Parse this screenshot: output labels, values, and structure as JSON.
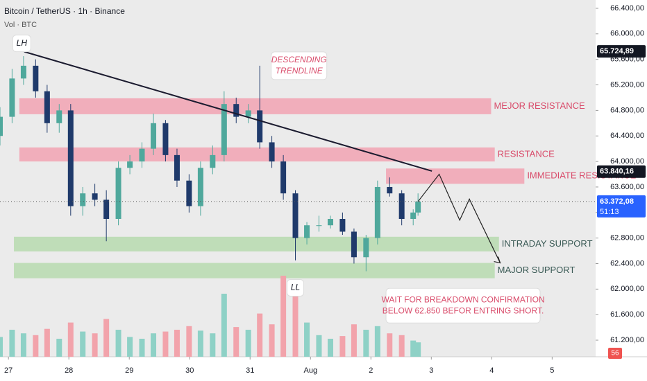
{
  "chart_data": {
    "type": "candlestick",
    "title": "Bitcoin / TetherUS · 1h · Binance",
    "volume_label": "Vol · BTC",
    "xlim": [
      26.86,
      36.72
    ],
    "xticks": [
      27,
      28,
      29,
      30,
      31,
      {
        "value": 32,
        "label": "Aug"
      },
      {
        "value": 33,
        "label": "2"
      },
      {
        "value": 34,
        "label": "3"
      },
      {
        "value": 35,
        "label": "4"
      },
      {
        "value": 36,
        "label": "5"
      }
    ],
    "ylim": [
      60940,
      66530
    ],
    "yticks": [
      {
        "value": 66400,
        "label": "66.400,00"
      },
      {
        "value": 66000,
        "label": "66.000,00"
      },
      {
        "value": 65600,
        "label": "65.600,00"
      },
      {
        "value": 65200,
        "label": "65.200,00"
      },
      {
        "value": 64800,
        "label": "64.800,00"
      },
      {
        "value": 64400,
        "label": "64.400,00"
      },
      {
        "value": 64000,
        "label": "64.000,00"
      },
      {
        "value": 63600,
        "label": "63.600,00"
      },
      {
        "value": 63200,
        "label": "63.200,00"
      },
      {
        "value": 62800,
        "label": "62.800,00"
      },
      {
        "value": 62400,
        "label": "62.400,00"
      },
      {
        "value": 62000,
        "label": "62.000,00"
      },
      {
        "value": 61600,
        "label": "61.600,00"
      },
      {
        "value": 61200,
        "label": "61.200,00"
      }
    ],
    "vlim": [
      0,
      1000
    ],
    "up_color": "#4fa89c",
    "down_color": "#1f3a6b",
    "vol_up_color": "#8ed1c6",
    "vol_down_color": "#f2a3ab",
    "x": [
      26.86,
      27.06,
      27.25,
      27.45,
      27.64,
      27.84,
      28.03,
      28.23,
      28.43,
      28.62,
      28.82,
      29.01,
      29.21,
      29.4,
      29.6,
      29.79,
      29.99,
      30.18,
      30.38,
      30.57,
      30.77,
      30.97,
      31.16,
      31.36,
      31.55,
      31.75,
      31.94,
      32.14,
      32.33,
      32.53,
      32.72,
      32.92,
      33.11,
      33.31,
      33.51,
      33.7,
      33.78
    ],
    "open": [
      64400,
      64700,
      65300,
      65500,
      65100,
      64600,
      64800,
      63300,
      63500,
      63400,
      63100,
      63900,
      64000,
      64200,
      64600,
      64100,
      63700,
      63300,
      63900,
      64100,
      64900,
      64700,
      64800,
      64300,
      64000,
      63500,
      62800,
      63000,
      63000,
      63100,
      62900,
      62500,
      62800,
      63600,
      63500,
      63100,
      63200
    ],
    "high": [
      64850,
      65450,
      65650,
      65600,
      65200,
      64900,
      64900,
      63600,
      63650,
      63550,
      64000,
      64100,
      64300,
      64750,
      64650,
      64200,
      63800,
      64000,
      64250,
      65100,
      65000,
      64900,
      65500,
      64400,
      64100,
      63550,
      63050,
      63150,
      63150,
      63200,
      62950,
      62850,
      63700,
      63750,
      63550,
      63250,
      63500
    ],
    "low": [
      64250,
      64600,
      65200,
      65000,
      64450,
      64450,
      63150,
      63150,
      63300,
      62750,
      63000,
      63800,
      63900,
      64100,
      64000,
      63600,
      63200,
      63150,
      63800,
      64000,
      64600,
      64600,
      64200,
      63900,
      63400,
      62450,
      62700,
      62900,
      62950,
      62850,
      62400,
      62280,
      62700,
      63450,
      63000,
      63000,
      63150
    ],
    "close": [
      64700,
      65300,
      65500,
      65100,
      64600,
      64800,
      63300,
      63500,
      63400,
      63100,
      63900,
      64000,
      64200,
      64600,
      64100,
      63700,
      63300,
      63900,
      64100,
      64900,
      64700,
      64800,
      64300,
      64000,
      63500,
      62800,
      63000,
      63000,
      63100,
      62900,
      62500,
      62800,
      63600,
      63500,
      63100,
      63200,
      63372
    ],
    "volume": [
      220,
      300,
      260,
      240,
      310,
      200,
      380,
      280,
      260,
      420,
      300,
      220,
      200,
      260,
      280,
      300,
      340,
      290,
      260,
      700,
      330,
      300,
      480,
      360,
      900,
      800,
      380,
      240,
      200,
      230,
      360,
      300,
      340,
      260,
      240,
      180,
      160
    ],
    "zones": [
      {
        "label": "MEJOR RESISTANCE",
        "range": [
          64740,
          64990
        ],
        "x": [
          27.18,
          34.99
        ],
        "color": "#f2a3b3",
        "text_color": "#d94b6a"
      },
      {
        "label": "RESISTANCE",
        "range": [
          64000,
          64220
        ],
        "x": [
          27.18,
          35.05
        ],
        "color": "#f2a3b3",
        "text_color": "#d94b6a"
      },
      {
        "label": "IMMEDIATE RESISTANCE",
        "range": [
          63650,
          63890
        ],
        "x": [
          33.25,
          35.54
        ],
        "color": "#f2a3b3",
        "text_color": "#d94b6a"
      },
      {
        "label": "INTRADAY SUPPORT",
        "range": [
          62590,
          62820
        ],
        "x": [
          27.09,
          35.12
        ],
        "color": "#b7dbaf",
        "text_color": "#3a5a55"
      },
      {
        "label": "MAJOR SUPPORT",
        "range": [
          62170,
          62410
        ],
        "x": [
          27.09,
          35.05
        ],
        "color": "#b7dbaf",
        "text_color": "#3a5a55"
      }
    ],
    "trendline": {
      "x": [
        27.26,
        34.01
      ],
      "y": [
        65720,
        63850
      ]
    },
    "projection": {
      "x": [
        33.78,
        34.13,
        34.47,
        34.63,
        35.14
      ],
      "y": [
        63372,
        63800,
        63080,
        63410,
        62410
      ]
    },
    "annotations": [
      {
        "text": "LH",
        "x": 27.22,
        "y": 65850
      },
      {
        "text": "LL",
        "x": 31.75,
        "y": 62020
      },
      {
        "text": "DESCENDING TRENDLINE",
        "x": 31.35,
        "y": 65500
      },
      {
        "text": "WAIT FOR BREAKDOWN CONFIRMATION BELOW 62.850 BEFOR ENTRING SHORT.",
        "x": 33.25,
        "y": 61740
      }
    ],
    "price_badges": [
      {
        "value": 65724.89,
        "label": "65.724,89",
        "color": "#131722"
      },
      {
        "value": 63840.16,
        "label": "63.840,16",
        "color": "#131722"
      },
      {
        "value": 63372.08,
        "label": "63.372,08",
        "color": "#2962ff",
        "countdown": "51:13"
      }
    ],
    "volume_badge": "56"
  }
}
